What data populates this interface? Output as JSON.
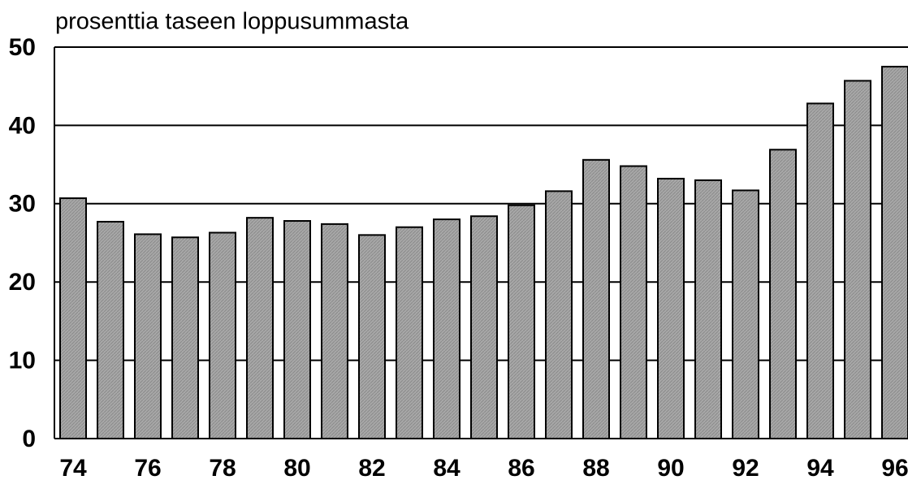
{
  "chart_data": {
    "type": "bar",
    "title": "prosenttia taseen loppusummasta",
    "categories": [
      "74",
      null,
      "76",
      null,
      "78",
      null,
      "80",
      null,
      "82",
      null,
      "84",
      null,
      "86",
      null,
      "88",
      null,
      "90",
      null,
      "92",
      null,
      "94",
      null,
      "96"
    ],
    "values": [
      30.7,
      27.7,
      26.1,
      25.7,
      26.3,
      28.2,
      27.8,
      27.4,
      26.0,
      27.0,
      28.0,
      28.4,
      29.8,
      31.6,
      35.6,
      34.8,
      33.2,
      33.0,
      31.7,
      36.9,
      42.8,
      45.7,
      47.5
    ],
    "color": "#a3a3a3",
    "ylim": [
      0,
      50
    ],
    "yticks": [
      0,
      10,
      20,
      30,
      40,
      50
    ],
    "grid": true
  }
}
